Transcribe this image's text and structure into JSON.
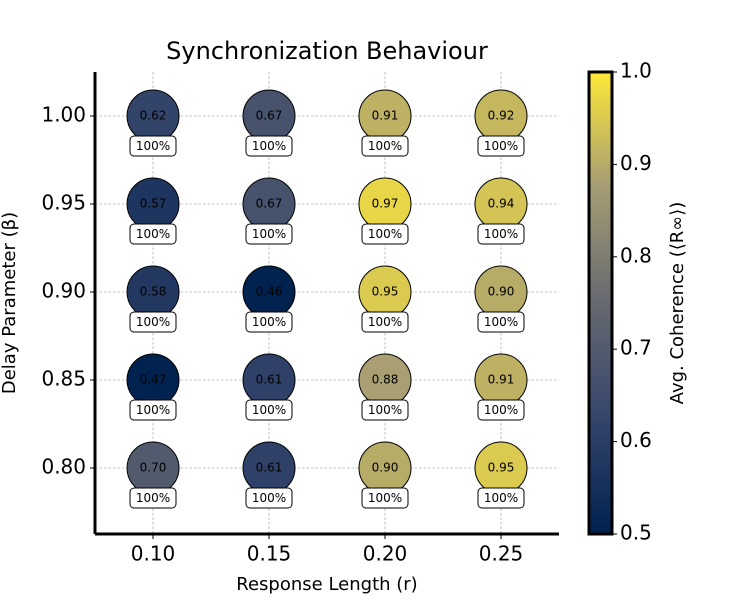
{
  "chart_data": {
    "type": "scatter",
    "title": "Synchronization Behaviour",
    "xlabel": "Response Length (r)",
    "ylabel": "Delay Parameter (β)",
    "colorbar_label": "Avg. Coherence (⟨R∞⟩)",
    "x": [
      0.1,
      0.15,
      0.2,
      0.25,
      0.1,
      0.15,
      0.2,
      0.25,
      0.1,
      0.15,
      0.2,
      0.25,
      0.1,
      0.15,
      0.2,
      0.25,
      0.1,
      0.15,
      0.2,
      0.25
    ],
    "y": [
      1.0,
      1.0,
      1.0,
      1.0,
      0.95,
      0.95,
      0.95,
      0.95,
      0.9,
      0.9,
      0.9,
      0.9,
      0.85,
      0.85,
      0.85,
      0.85,
      0.8,
      0.8,
      0.8,
      0.8
    ],
    "values": [
      0.62,
      0.67,
      0.91,
      0.92,
      0.57,
      0.67,
      0.97,
      0.94,
      0.58,
      0.46,
      0.95,
      0.9,
      0.47,
      0.61,
      0.88,
      0.91,
      0.7,
      0.61,
      0.9,
      0.95
    ],
    "value_labels": [
      "0.62",
      "0.67",
      "0.91",
      "0.92",
      "0.57",
      "0.67",
      "0.97",
      "0.94",
      "0.58",
      "0.46",
      "0.95",
      "0.90",
      "0.47",
      "0.61",
      "0.88",
      "0.91",
      "0.70",
      "0.61",
      "0.90",
      "0.95"
    ],
    "annotations": [
      "100%",
      "100%",
      "100%",
      "100%",
      "100%",
      "100%",
      "100%",
      "100%",
      "100%",
      "100%",
      "100%",
      "100%",
      "100%",
      "100%",
      "100%",
      "100%",
      "100%",
      "100%",
      "100%",
      "100%"
    ],
    "xlim": [
      0.075,
      0.275
    ],
    "xticks": [
      {
        "value": 0.1,
        "label": "0.10"
      },
      0.15,
      {
        "value": 0.2,
        "label": "0.20"
      },
      0.25
    ],
    "ylim": [
      0.7625,
      1.025
    ],
    "yticks": [
      {
        "value": 0.8,
        "label": "0.80"
      },
      0.85,
      {
        "value": 0.9,
        "label": "0.90"
      },
      0.95,
      {
        "value": 1.0,
        "label": "1.00"
      }
    ],
    "clim": [
      0.5,
      1.0
    ],
    "cticks": [
      0.5,
      0.6,
      0.7,
      0.8,
      0.9,
      {
        "value": 1.0,
        "label": "1.0"
      }
    ],
    "colormap": [
      "#00224e",
      "#35456c",
      "#666970",
      "#a59c74",
      "#fee838"
    ],
    "grid": true
  }
}
